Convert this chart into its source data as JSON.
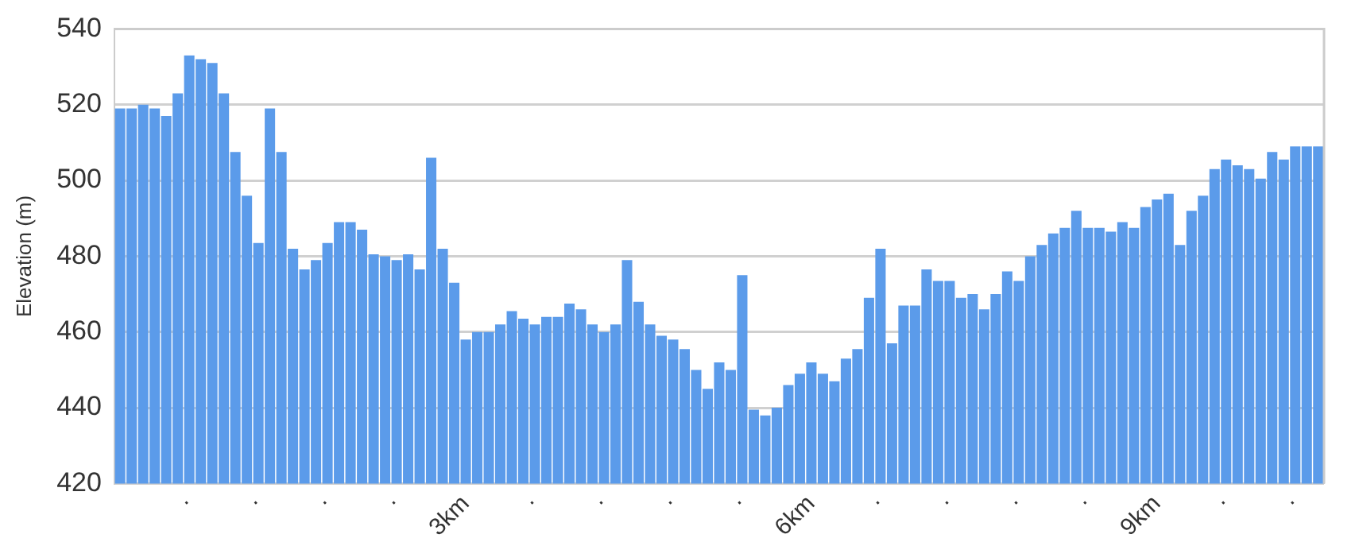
{
  "chart_data": {
    "type": "bar",
    "ylabel": "Elevation (m)",
    "categories": [
      null,
      null,
      null,
      null,
      null,
      null,
      "·",
      null,
      null,
      null,
      null,
      null,
      "·",
      null,
      null,
      null,
      null,
      null,
      "·",
      null,
      null,
      null,
      null,
      null,
      "·",
      null,
      null,
      null,
      null,
      null,
      "3km",
      null,
      null,
      null,
      null,
      null,
      "·",
      null,
      null,
      null,
      null,
      null,
      "·",
      null,
      null,
      null,
      null,
      null,
      "·",
      null,
      null,
      null,
      null,
      null,
      "·",
      null,
      null,
      null,
      null,
      null,
      "6km",
      null,
      null,
      null,
      null,
      null,
      "·",
      null,
      null,
      null,
      null,
      null,
      "·",
      null,
      null,
      null,
      null,
      null,
      "·",
      null,
      null,
      null,
      null,
      null,
      "·",
      null,
      null,
      null,
      null,
      null,
      "9km",
      null,
      null,
      null,
      null,
      null,
      "·",
      null,
      null,
      null,
      null,
      null,
      "·",
      null,
      null
    ],
    "values": [
      519,
      519,
      520,
      519,
      517,
      523,
      533,
      532,
      531,
      523,
      507.5,
      496,
      483.5,
      519,
      507.5,
      482,
      476.5,
      479,
      483.5,
      489,
      489,
      487,
      480.5,
      480,
      479,
      480.5,
      476.5,
      506,
      482,
      473,
      458,
      460,
      460,
      462,
      465.5,
      463.5,
      462,
      464,
      464,
      467.5,
      466,
      462,
      460,
      462,
      479,
      468,
      462,
      459,
      458,
      455.5,
      450,
      445,
      452,
      450,
      475,
      439.5,
      438,
      440,
      446,
      449,
      452,
      449,
      447,
      453,
      455.5,
      469,
      482,
      457,
      467,
      467,
      476.5,
      473.5,
      473.5,
      469,
      470,
      466,
      470,
      476,
      473.5,
      480,
      483,
      486,
      487.5,
      492,
      487.5,
      487.5,
      486.5,
      489,
      487.5,
      493,
      495,
      496.5,
      483,
      492,
      496,
      503,
      505.5,
      504,
      503,
      500.5,
      507.5,
      505.5,
      509,
      509,
      509
    ],
    "color": "#5b9bea",
    "ylim": [
      420,
      540
    ],
    "yticks": [
      420,
      440,
      460,
      480,
      500,
      520,
      540
    ],
    "grid": "y",
    "legend": false
  }
}
